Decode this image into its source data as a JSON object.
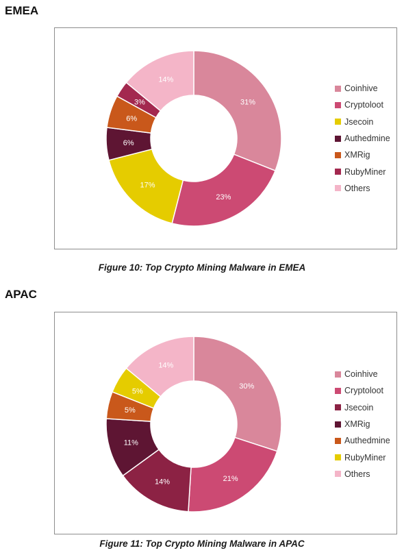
{
  "charts": [
    {
      "region": "EMEA",
      "caption": "Figure 10: Top Crypto Mining Malware in EMEA",
      "chart_data": {
        "type": "pie",
        "variant": "donut",
        "legend_position": "right",
        "categories": [
          "Coinhive",
          "Cryptoloot",
          "Jsecoin",
          "Authedmine",
          "XMRig",
          "RubyMiner",
          "Others"
        ],
        "values": [
          31,
          23,
          17,
          6,
          6,
          3,
          14
        ],
        "data_labels": [
          "31%",
          "23%",
          "17%",
          "6%",
          "6%",
          "3%",
          "14%"
        ],
        "colors": [
          "#d9879b",
          "#cc4a73",
          "#e5cc00",
          "#5e1533",
          "#c9581b",
          "#a3284f",
          "#f4b5c8"
        ]
      }
    },
    {
      "region": "APAC",
      "caption": "Figure 11: Top Crypto Mining Malware in APAC",
      "chart_data": {
        "type": "pie",
        "variant": "donut",
        "legend_position": "right",
        "categories": [
          "Coinhive",
          "Cryptoloot",
          "Jsecoin",
          "XMRig",
          "Authedmine",
          "RubyMiner",
          "Others"
        ],
        "values": [
          30,
          21,
          14,
          11,
          5,
          5,
          14
        ],
        "data_labels": [
          "30%",
          "21%",
          "14%",
          "11%",
          "5%",
          "5%",
          "14%"
        ],
        "colors": [
          "#d9879b",
          "#cc4a73",
          "#8c2244",
          "#5e1533",
          "#c9581b",
          "#e5cc00",
          "#f4b5c8"
        ]
      }
    }
  ]
}
